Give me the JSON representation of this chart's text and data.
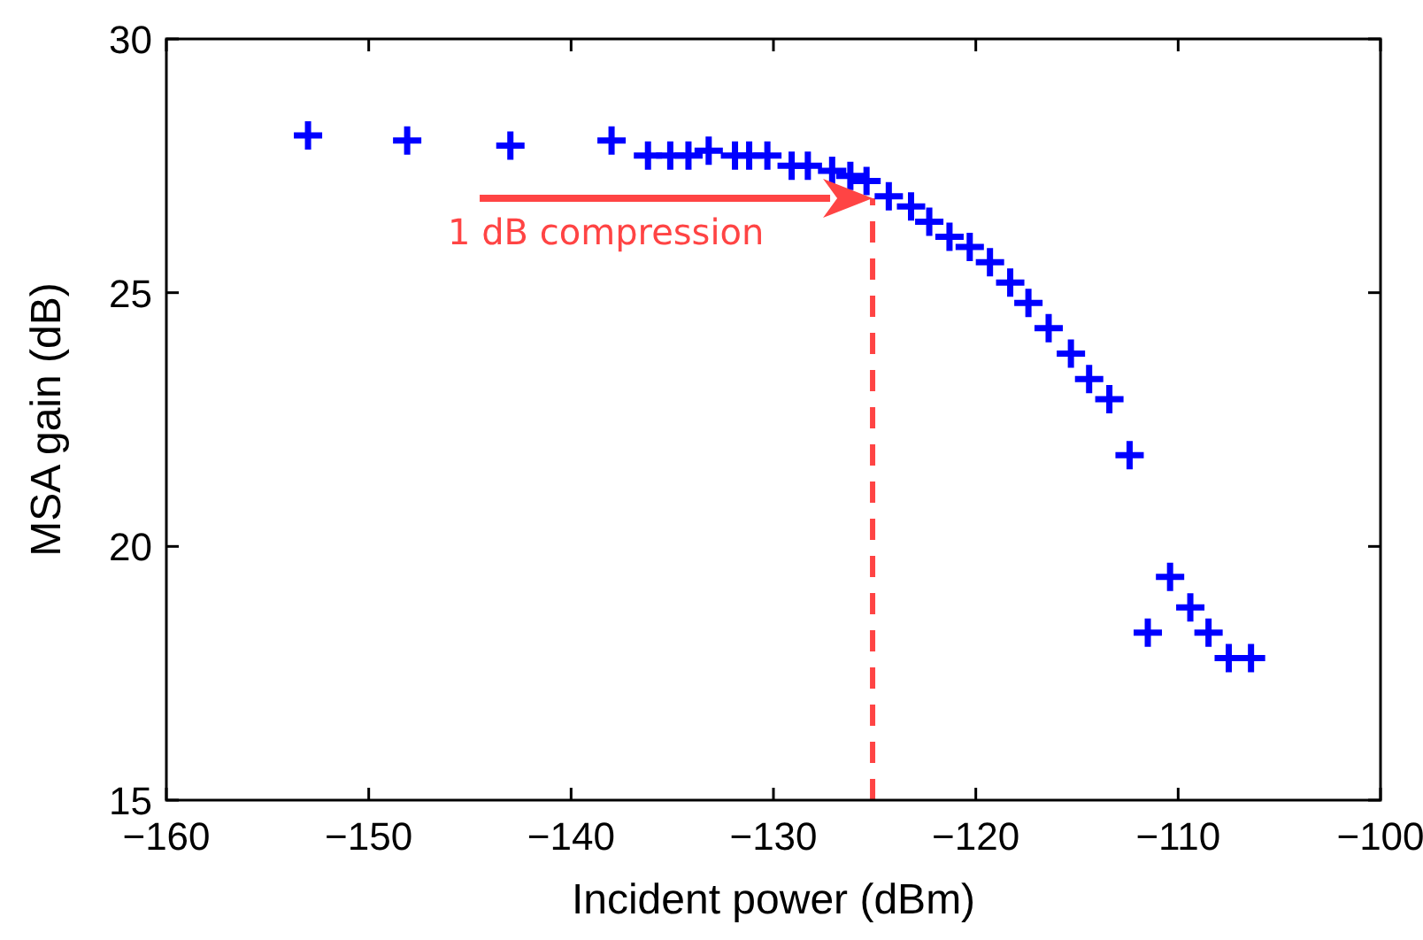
{
  "chart_data": {
    "type": "scatter",
    "xlabel": "Incident power (dBm)",
    "ylabel": "MSA gain (dB)",
    "x": [
      -153.0,
      -148.1,
      -143.0,
      -138.0,
      -136.2,
      -135.1,
      -134.2,
      -133.2,
      -131.9,
      -131.2,
      -130.3,
      -129.1,
      -128.3,
      -127.1,
      -126.2,
      -125.4,
      -124.3,
      -123.2,
      -122.3,
      -121.3,
      -120.3,
      -119.3,
      -118.3,
      -117.4,
      -116.4,
      -115.3,
      -114.4,
      -113.4,
      -112.4,
      -111.5,
      -110.4,
      -109.4,
      -108.5,
      -107.5,
      -106.4
    ],
    "series": [
      {
        "color": "#0000ff",
        "values": [
          28.1,
          28.0,
          27.9,
          28.0,
          27.7,
          27.7,
          27.7,
          27.8,
          27.7,
          27.7,
          27.7,
          27.5,
          27.5,
          27.4,
          27.3,
          27.2,
          26.9,
          26.7,
          26.4,
          26.1,
          25.9,
          25.6,
          25.2,
          24.8,
          24.3,
          23.8,
          23.3,
          22.9,
          21.8,
          18.3,
          19.4,
          18.8,
          18.3,
          17.8,
          17.8
        ]
      }
    ],
    "marker": "cross",
    "xlim": [
      -160,
      -100
    ],
    "xticks": [
      {
        "value": -160,
        "label": "−160"
      },
      {
        "value": -150,
        "label": "−150"
      },
      {
        "value": -140,
        "label": "−140"
      },
      {
        "value": -130,
        "label": "−130"
      },
      {
        "value": -120,
        "label": "−120"
      },
      {
        "value": -110,
        "label": "−110"
      },
      {
        "value": -100,
        "label": "−100"
      }
    ],
    "ylim": [
      15,
      30
    ],
    "yticks": [
      15,
      20,
      25,
      30
    ],
    "ref_lines": [
      {
        "axis": "x",
        "value": -125.1,
        "color": "#ff4444",
        "line_style": "dashed"
      }
    ],
    "annotations": [
      "1 dB compression"
    ],
    "grid": false
  }
}
